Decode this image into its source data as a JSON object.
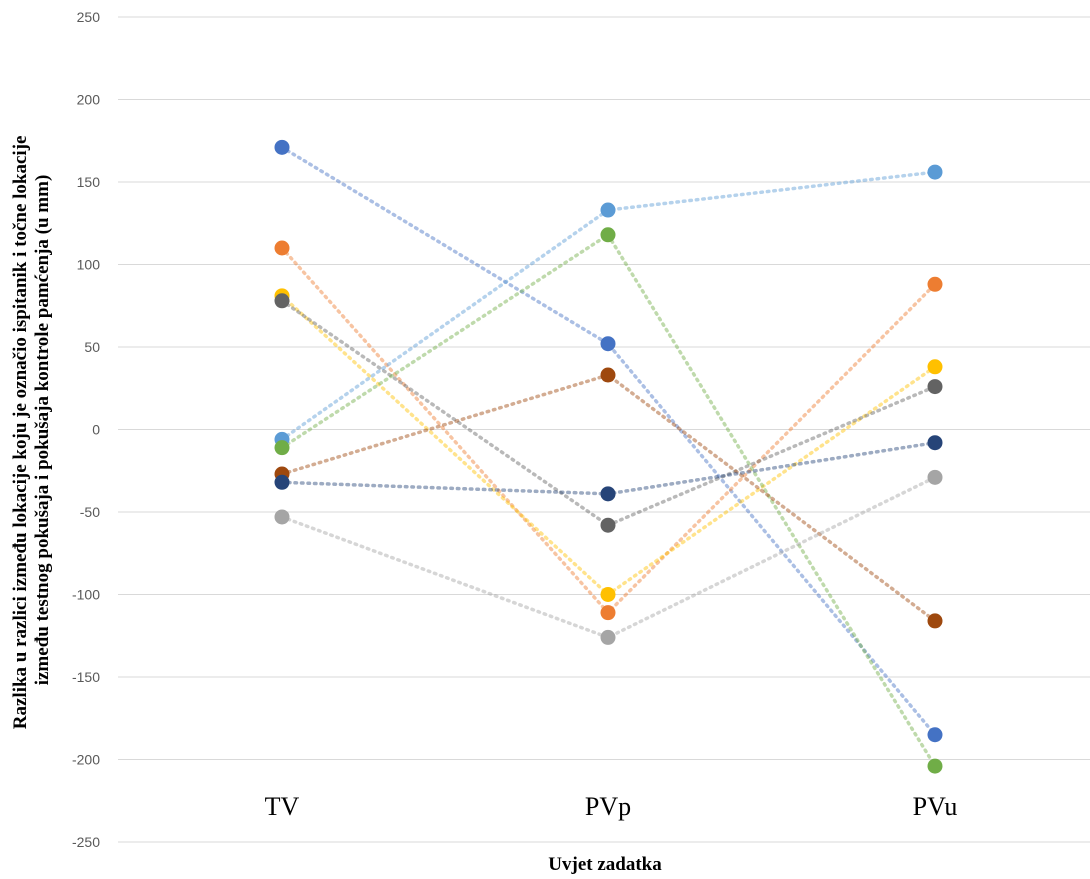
{
  "chart_data": {
    "type": "line",
    "categories": [
      "TV",
      "PVp",
      "PVu"
    ],
    "xlabel": "Uvjet zadatka",
    "ylabel_line1": "Razlika u razlici između lokacije koju je označio ispitanik i točne lokacije",
    "ylabel_line2": "između testnog pokušaja i pokušaja kontrole pamćenja (u mm)",
    "ylim": [
      -250,
      250
    ],
    "yticks": [
      250,
      200,
      150,
      100,
      50,
      0,
      -50,
      -100,
      -150,
      -200,
      -250
    ],
    "grid": true,
    "legend": "none",
    "series": [
      {
        "color": "#4472c4",
        "values": [
          171,
          52,
          -185
        ]
      },
      {
        "color": "#ed7d31",
        "values": [
          110,
          -111,
          88
        ]
      },
      {
        "color": "#ffc000",
        "values": [
          81,
          -100,
          38
        ]
      },
      {
        "color": "#636363",
        "values": [
          78,
          -58,
          26
        ]
      },
      {
        "color": "#5b9bd5",
        "values": [
          -6,
          133,
          156
        ]
      },
      {
        "color": "#70ad47",
        "values": [
          -11,
          118,
          -204
        ]
      },
      {
        "color": "#9e480e",
        "values": [
          -27,
          33,
          -116
        ]
      },
      {
        "color": "#264478",
        "values": [
          -32,
          -39,
          -8
        ]
      },
      {
        "color": "#a5a5a5",
        "values": [
          -53,
          -126,
          -29
        ]
      }
    ]
  }
}
